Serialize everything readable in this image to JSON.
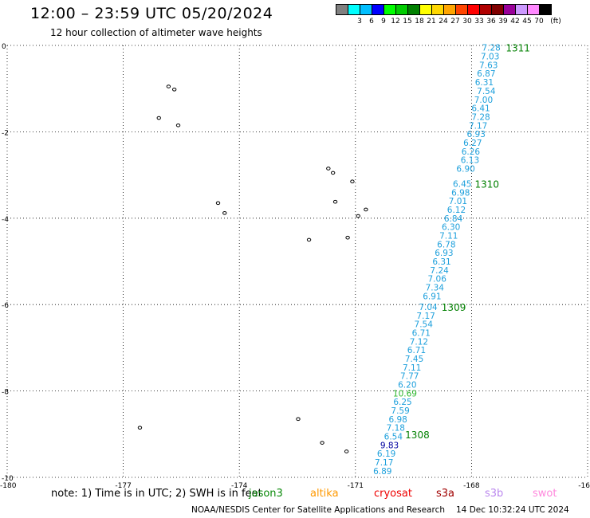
{
  "header": {
    "title": "12:00 – 23:59 UTC 05/20/2024",
    "subtitle": "12 hour collection of altimeter wave heights"
  },
  "legend": {
    "unit": "(ft)",
    "bins": [
      {
        "label": "",
        "color": "#808080"
      },
      {
        "label": "3",
        "color": "#00ffff"
      },
      {
        "label": "6",
        "color": "#00bfff"
      },
      {
        "label": "9",
        "color": "#0000ff"
      },
      {
        "label": "12",
        "color": "#00ff00"
      },
      {
        "label": "15",
        "color": "#00cc00"
      },
      {
        "label": "18",
        "color": "#008000"
      },
      {
        "label": "21",
        "color": "#ffff00"
      },
      {
        "label": "24",
        "color": "#ffd700"
      },
      {
        "label": "27",
        "color": "#ffa500"
      },
      {
        "label": "30",
        "color": "#ff4500"
      },
      {
        "label": "33",
        "color": "#ff0000"
      },
      {
        "label": "36",
        "color": "#b00000"
      },
      {
        "label": "39",
        "color": "#800000"
      },
      {
        "label": "42",
        "color": "#990099"
      },
      {
        "label": "45",
        "color": "#cc99ff"
      },
      {
        "label": "70",
        "color": "#ff88ff"
      },
      {
        "label": "",
        "color": "#000000"
      }
    ]
  },
  "axes": {
    "x_ticks": [
      "-180",
      "-177",
      "-174",
      "-171",
      "-168",
      "-16"
    ],
    "y_ticks": [
      "0",
      "-2",
      "-4",
      "-6",
      "-8",
      "-10"
    ],
    "lon_range": [
      -180,
      -165
    ],
    "lat_range": [
      -10,
      0
    ]
  },
  "track": {
    "color": "#1ea0dc",
    "points": [
      {
        "lat": -0.05,
        "lon": -167.49,
        "value": "7.28"
      },
      {
        "lat": -0.25,
        "lon": -167.52,
        "value": "7.03"
      },
      {
        "lat": -0.45,
        "lon": -167.56,
        "value": "7.63"
      },
      {
        "lat": -0.65,
        "lon": -167.62,
        "value": "6.87"
      },
      {
        "lat": -0.85,
        "lon": -167.67,
        "value": "6.31"
      },
      {
        "lat": -1.05,
        "lon": -167.62,
        "value": "7.54"
      },
      {
        "lat": -1.25,
        "lon": -167.69,
        "value": "7.00"
      },
      {
        "lat": -1.45,
        "lon": -167.76,
        "value": "6.41"
      },
      {
        "lat": -1.65,
        "lon": -167.76,
        "value": "7.28"
      },
      {
        "lat": -1.85,
        "lon": -167.83,
        "value": "7.17"
      },
      {
        "lat": -2.05,
        "lon": -167.88,
        "value": "6.93"
      },
      {
        "lat": -2.25,
        "lon": -167.97,
        "value": "6.27"
      },
      {
        "lat": -2.45,
        "lon": -168.02,
        "value": "6.26"
      },
      {
        "lat": -2.65,
        "lon": -168.04,
        "value": "6.13"
      },
      {
        "lat": -2.85,
        "lon": -168.15,
        "value": "6.90"
      },
      {
        "lat": -3.2,
        "lon": -168.24,
        "value": "6.45"
      },
      {
        "lat": -3.4,
        "lon": -168.28,
        "value": "6.98"
      },
      {
        "lat": -3.6,
        "lon": -168.35,
        "value": "7.01"
      },
      {
        "lat": -3.8,
        "lon": -168.39,
        "value": "6.12"
      },
      {
        "lat": -4.0,
        "lon": -168.47,
        "value": "6.84"
      },
      {
        "lat": -4.2,
        "lon": -168.53,
        "value": "6.30"
      },
      {
        "lat": -4.4,
        "lon": -168.59,
        "value": "7.11"
      },
      {
        "lat": -4.6,
        "lon": -168.65,
        "value": "6.78"
      },
      {
        "lat": -4.8,
        "lon": -168.71,
        "value": "6.93"
      },
      {
        "lat": -5.0,
        "lon": -168.77,
        "value": "6.31"
      },
      {
        "lat": -5.2,
        "lon": -168.83,
        "value": "7.24"
      },
      {
        "lat": -5.4,
        "lon": -168.89,
        "value": "7.06"
      },
      {
        "lat": -5.6,
        "lon": -168.95,
        "value": "7.34"
      },
      {
        "lat": -5.8,
        "lon": -169.02,
        "value": "6.91"
      },
      {
        "lat": -6.05,
        "lon": -169.12,
        "value": "7.04"
      },
      {
        "lat": -6.25,
        "lon": -169.18,
        "value": "7.17"
      },
      {
        "lat": -6.45,
        "lon": -169.24,
        "value": "7.54"
      },
      {
        "lat": -6.65,
        "lon": -169.3,
        "value": "6.71"
      },
      {
        "lat": -6.85,
        "lon": -169.36,
        "value": "7.12"
      },
      {
        "lat": -7.05,
        "lon": -169.42,
        "value": "6.71"
      },
      {
        "lat": -7.25,
        "lon": -169.48,
        "value": "7.45"
      },
      {
        "lat": -7.45,
        "lon": -169.54,
        "value": "7.11"
      },
      {
        "lat": -7.65,
        "lon": -169.6,
        "value": "7.77"
      },
      {
        "lat": -7.85,
        "lon": -169.66,
        "value": "6.20"
      },
      {
        "lat": -8.05,
        "lon": -169.72,
        "value": "10.69",
        "color": "#2db82d"
      },
      {
        "lat": -8.25,
        "lon": -169.78,
        "value": "6.25"
      },
      {
        "lat": -8.45,
        "lon": -169.84,
        "value": "7.59"
      },
      {
        "lat": -8.65,
        "lon": -169.9,
        "value": "6.98"
      },
      {
        "lat": -8.85,
        "lon": -169.96,
        "value": "7.18"
      },
      {
        "lat": -9.05,
        "lon": -170.02,
        "value": "6.54"
      },
      {
        "lat": -9.25,
        "lon": -170.12,
        "value": "9.83",
        "color": "#0000a0"
      },
      {
        "lat": -9.45,
        "lon": -170.2,
        "value": "6.19"
      },
      {
        "lat": -9.65,
        "lon": -170.26,
        "value": "7.17"
      },
      {
        "lat": -9.85,
        "lon": -170.3,
        "value": "6.89"
      }
    ]
  },
  "orbits": [
    {
      "label": "1311",
      "lat": -0.05,
      "lon": -166.8
    },
    {
      "label": "1310",
      "lat": -3.2,
      "lon": -167.6
    },
    {
      "label": "1309",
      "lat": -6.05,
      "lon": -168.46
    },
    {
      "label": "1308",
      "lat": -9.0,
      "lon": -169.4
    }
  ],
  "islands": [
    {
      "lat": -0.95,
      "lon": -175.83
    },
    {
      "lat": -1.02,
      "lon": -175.68
    },
    {
      "lat": -1.68,
      "lon": -176.08
    },
    {
      "lat": -1.85,
      "lon": -175.58
    },
    {
      "lat": -2.85,
      "lon": -171.7
    },
    {
      "lat": -2.95,
      "lon": -171.58
    },
    {
      "lat": -3.15,
      "lon": -171.08
    },
    {
      "lat": -3.65,
      "lon": -174.55
    },
    {
      "lat": -3.62,
      "lon": -171.52
    },
    {
      "lat": -3.8,
      "lon": -170.73
    },
    {
      "lat": -3.95,
      "lon": -170.93
    },
    {
      "lat": -3.88,
      "lon": -174.38
    },
    {
      "lat": -4.5,
      "lon": -172.2
    },
    {
      "lat": -4.45,
      "lon": -171.2
    },
    {
      "lat": -8.65,
      "lon": -172.48
    },
    {
      "lat": -8.85,
      "lon": -176.57
    },
    {
      "lat": -9.2,
      "lon": -171.86
    },
    {
      "lat": -9.4,
      "lon": -171.23
    }
  ],
  "note": {
    "text": "note: 1) Time is in UTC; 2) SWH is in feet",
    "satellites": [
      {
        "name": "jason3",
        "color": "#0a8a0a"
      },
      {
        "name": "altika",
        "color": "#ff9900"
      },
      {
        "name": "cryosat",
        "color": "#ee0000"
      },
      {
        "name": "s3a",
        "color": "#a00000"
      },
      {
        "name": "s3b",
        "color": "#bb88ee"
      },
      {
        "name": "swot",
        "color": "#ff88dd"
      }
    ]
  },
  "footer": {
    "credit": "NOAA/NESDIS Center for Satellite Applications and Research",
    "date": "14 Dec 10:32:24 UTC 2024"
  }
}
